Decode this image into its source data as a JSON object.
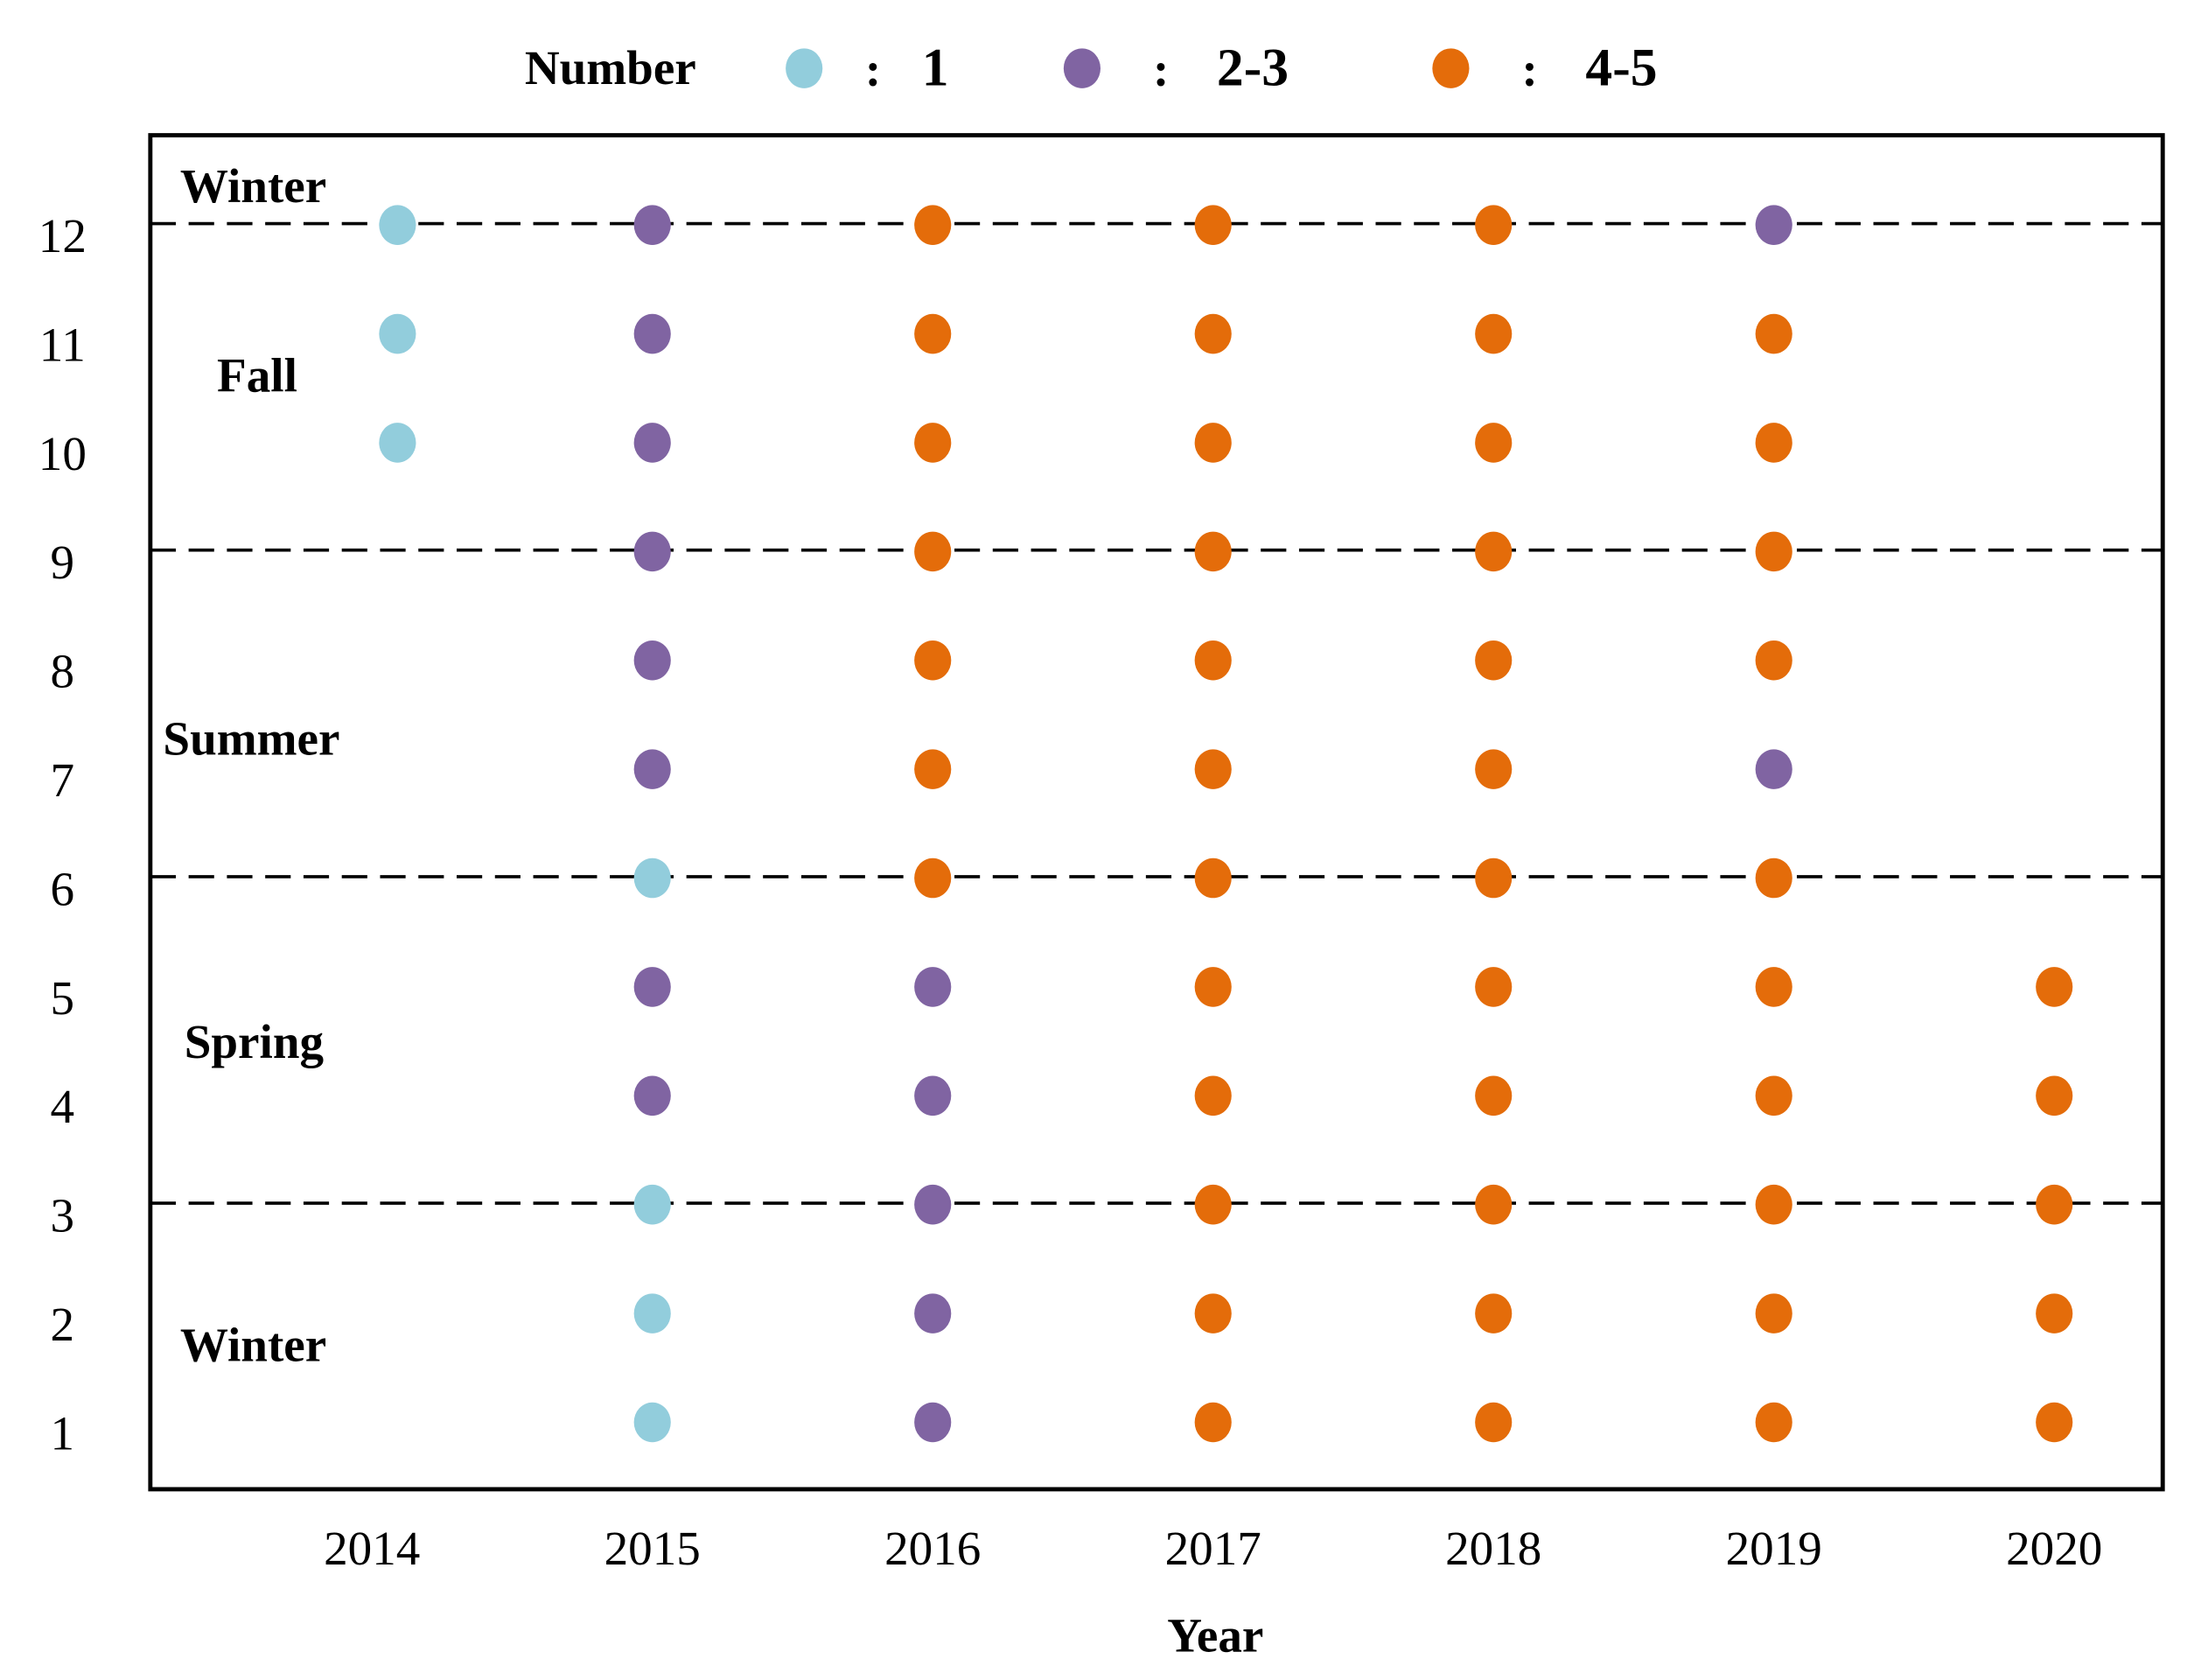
{
  "chart_data": {
    "type": "scatter",
    "xlabel": "Year",
    "ylabel": "",
    "x_ticks": [
      "2014",
      "2015",
      "2016",
      "2017",
      "2018",
      "2019",
      "2020"
    ],
    "y_ticks": [
      "1",
      "2",
      "3",
      "4",
      "5",
      "6",
      "7",
      "8",
      "9",
      "10",
      "11",
      "12"
    ],
    "xlim": [
      2014,
      2020
    ],
    "ylim": [
      1,
      12
    ],
    "grid": false,
    "season_boundaries": [
      3,
      6,
      9,
      12
    ],
    "season_labels": [
      "Winter",
      "Fall",
      "Summer",
      "Spring",
      "Winter"
    ],
    "legend": {
      "title": "Number",
      "separator": ":",
      "placement": "top",
      "entries": [
        "1",
        "2-3",
        "4-5"
      ]
    },
    "series": [
      {
        "name": "1",
        "color": "#92CDDC",
        "points": [
          [
            2014,
            10
          ],
          [
            2014,
            11
          ],
          [
            2014,
            12
          ],
          [
            2015,
            1
          ],
          [
            2015,
            2
          ],
          [
            2015,
            3
          ],
          [
            2015,
            6
          ]
        ]
      },
      {
        "name": "2-3",
        "color": "#8064A2",
        "points": [
          [
            2015,
            4
          ],
          [
            2015,
            5
          ],
          [
            2015,
            7
          ],
          [
            2015,
            8
          ],
          [
            2015,
            9
          ],
          [
            2015,
            10
          ],
          [
            2015,
            11
          ],
          [
            2015,
            12
          ],
          [
            2016,
            1
          ],
          [
            2016,
            2
          ],
          [
            2016,
            3
          ],
          [
            2016,
            4
          ],
          [
            2016,
            5
          ],
          [
            2019,
            7
          ],
          [
            2019,
            12
          ]
        ]
      },
      {
        "name": "4-5",
        "color": "#E46C0A",
        "points": [
          [
            2016,
            6
          ],
          [
            2016,
            7
          ],
          [
            2016,
            8
          ],
          [
            2016,
            9
          ],
          [
            2016,
            10
          ],
          [
            2016,
            11
          ],
          [
            2016,
            12
          ],
          [
            2017,
            1
          ],
          [
            2017,
            2
          ],
          [
            2017,
            3
          ],
          [
            2017,
            4
          ],
          [
            2017,
            5
          ],
          [
            2017,
            6
          ],
          [
            2017,
            7
          ],
          [
            2017,
            8
          ],
          [
            2017,
            9
          ],
          [
            2017,
            10
          ],
          [
            2017,
            11
          ],
          [
            2017,
            12
          ],
          [
            2018,
            1
          ],
          [
            2018,
            2
          ],
          [
            2018,
            3
          ],
          [
            2018,
            4
          ],
          [
            2018,
            5
          ],
          [
            2018,
            6
          ],
          [
            2018,
            7
          ],
          [
            2018,
            8
          ],
          [
            2018,
            9
          ],
          [
            2018,
            10
          ],
          [
            2018,
            11
          ],
          [
            2018,
            12
          ],
          [
            2019,
            1
          ],
          [
            2019,
            2
          ],
          [
            2019,
            3
          ],
          [
            2019,
            4
          ],
          [
            2019,
            5
          ],
          [
            2019,
            6
          ],
          [
            2019,
            8
          ],
          [
            2019,
            9
          ],
          [
            2019,
            10
          ],
          [
            2019,
            11
          ],
          [
            2020,
            1
          ],
          [
            2020,
            2
          ],
          [
            2020,
            3
          ],
          [
            2020,
            4
          ],
          [
            2020,
            5
          ]
        ]
      }
    ]
  }
}
